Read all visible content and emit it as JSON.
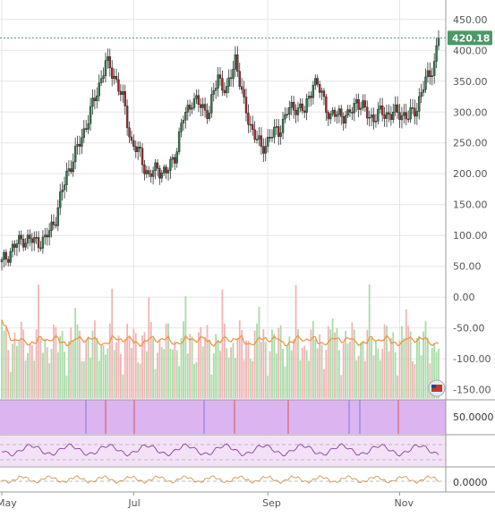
{
  "chart_data": {
    "type": "candlestick",
    "price_axis": {
      "ticks": [
        "450.00",
        "400.00",
        "350.00",
        "300.00",
        "250.00",
        "200.00",
        "150.00",
        "100.00",
        "50.00",
        "0.00",
        "-50.00",
        "-100.00",
        "-150.00"
      ],
      "tick_values": [
        450,
        400,
        350,
        300,
        250,
        200,
        150,
        100,
        50,
        0,
        -50,
        -100,
        -150
      ],
      "range": [
        -165,
        470
      ]
    },
    "x_axis": {
      "labels": [
        "May",
        "Jul",
        "Sep",
        "Nov"
      ],
      "label_day_index": [
        0,
        61,
        123,
        184
      ],
      "day_count": 203
    },
    "last_price": {
      "label": "420.18",
      "value": 420.18
    },
    "candles": {
      "anchors_day": [
        0,
        5,
        10,
        15,
        20,
        25,
        30,
        35,
        42,
        48,
        52,
        56,
        60,
        64,
        68,
        72,
        76,
        80,
        84,
        88,
        92,
        96,
        100,
        104,
        108,
        112,
        116,
        120,
        124,
        128,
        132,
        136,
        140,
        144,
        148,
        152,
        156,
        160,
        164,
        168,
        172,
        176,
        180,
        184,
        188,
        192,
        196,
        200,
        202
      ],
      "anchors_close": [
        55,
        80,
        95,
        90,
        92,
        130,
        200,
        240,
        310,
        380,
        360,
        320,
        250,
        230,
        195,
        210,
        200,
        230,
        290,
        320,
        310,
        300,
        360,
        330,
        390,
        310,
        270,
        240,
        260,
        270,
        300,
        310,
        300,
        350,
        330,
        290,
        300,
        290,
        320,
        300,
        290,
        300,
        295,
        300,
        290,
        310,
        350,
        380,
        420
      ]
    },
    "volume": {
      "baseline": -150,
      "ma_color": "#f0913a",
      "up_color": "#a8dba8",
      "down_color": "#f0b4b4"
    },
    "indicator1": {
      "tick": "50.0000",
      "fill_color": "#dcb4f0"
    },
    "indicator2": {
      "fill_color": "#f3e2f7",
      "line_color": "#8a3c9c"
    },
    "indicator3": {
      "tick": "0.0000",
      "line_color": "#c89a5a"
    },
    "colors": {
      "up": "#2e7d4f",
      "down": "#a52a2a",
      "last_price_bg": "#4a9968"
    }
  }
}
